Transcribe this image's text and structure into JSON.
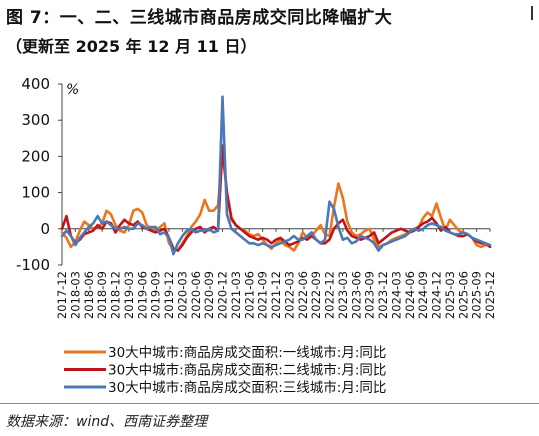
{
  "figure": {
    "title": "图 7：一、二、三线城市商品房成交同比降幅扩大",
    "subtitle": "（更新至 2025 年 12 月 11 日）",
    "source": "数据来源：wind、西南证券整理"
  },
  "chart_data": {
    "type": "line",
    "unit": "%",
    "ylim": [
      -100,
      400
    ],
    "yticks": [
      -100,
      0,
      100,
      200,
      300,
      400
    ],
    "x": [
      "2017-12",
      "2018-01",
      "2018-02",
      "2018-03",
      "2018-04",
      "2018-05",
      "2018-06",
      "2018-07",
      "2018-08",
      "2018-09",
      "2018-10",
      "2018-11",
      "2018-12",
      "2019-01",
      "2019-02",
      "2019-03",
      "2019-04",
      "2019-05",
      "2019-06",
      "2019-07",
      "2019-08",
      "2019-09",
      "2019-10",
      "2019-11",
      "2019-12",
      "2020-01",
      "2020-02",
      "2020-03",
      "2020-04",
      "2020-05",
      "2020-06",
      "2020-07",
      "2020-08",
      "2020-09",
      "2020-10",
      "2020-11",
      "2020-12",
      "2021-01",
      "2021-02",
      "2021-03",
      "2021-04",
      "2021-05",
      "2021-06",
      "2021-07",
      "2021-08",
      "2021-09",
      "2021-10",
      "2021-11",
      "2021-12",
      "2022-01",
      "2022-02",
      "2022-03",
      "2022-04",
      "2022-05",
      "2022-06",
      "2022-07",
      "2022-08",
      "2022-09",
      "2022-10",
      "2022-11",
      "2022-12",
      "2023-01",
      "2023-02",
      "2023-03",
      "2023-04",
      "2023-05",
      "2023-06",
      "2023-07",
      "2023-08",
      "2023-09",
      "2023-10",
      "2023-11",
      "2023-12",
      "2024-01",
      "2024-02",
      "2024-03",
      "2024-04",
      "2024-05",
      "2024-06",
      "2024-07",
      "2024-08",
      "2024-09",
      "2024-10",
      "2024-11",
      "2024-12",
      "2025-01",
      "2025-02",
      "2025-03",
      "2025-04",
      "2025-05",
      "2025-06",
      "2025-07",
      "2025-08",
      "2025-09",
      "2025-10",
      "2025-11",
      "2025-12"
    ],
    "xtick_labels": [
      "2017-12",
      "2018-03",
      "2018-06",
      "2018-09",
      "2018-12",
      "2019-03",
      "2019-06",
      "2019-09",
      "2019-12",
      "2020-03",
      "2020-06",
      "2020-09",
      "2020-12",
      "2021-03",
      "2021-06",
      "2021-09",
      "2021-12",
      "2022-03",
      "2022-06",
      "2022-09",
      "2022-12",
      "2023-03",
      "2023-06",
      "2023-09",
      "2023-12",
      "2024-03",
      "2024-06",
      "2024-09",
      "2024-12",
      "2025-03",
      "2025-06",
      "2025-09",
      "2025-12"
    ],
    "series": [
      {
        "name": "30大中城市:商品房成交面积:一线城市:月:同比",
        "color": "#e8771e",
        "values": [
          -10,
          -25,
          -50,
          -35,
          -5,
          20,
          10,
          0,
          5,
          15,
          50,
          40,
          10,
          -5,
          -10,
          10,
          50,
          55,
          45,
          10,
          0,
          -5,
          5,
          15,
          -40,
          -55,
          -60,
          -40,
          -20,
          5,
          20,
          40,
          80,
          50,
          50,
          65,
          210,
          100,
          25,
          10,
          0,
          -5,
          -15,
          -20,
          -15,
          -30,
          -45,
          -55,
          -40,
          -30,
          -45,
          -50,
          -60,
          -40,
          -10,
          -25,
          -20,
          -5,
          10,
          -15,
          -20,
          60,
          125,
          85,
          20,
          -10,
          -20,
          -15,
          -5,
          0,
          -30,
          -50,
          -45,
          -40,
          -30,
          -25,
          -20,
          -15,
          -10,
          0,
          5,
          30,
          45,
          35,
          70,
          30,
          -5,
          25,
          10,
          -5,
          -10,
          -15,
          -25,
          -45,
          -50,
          -45,
          -45
        ]
      },
      {
        "name": "30大中城市:商品房成交面积:二线城市:月:同比",
        "color": "#c0141c",
        "values": [
          0,
          35,
          -20,
          -40,
          -30,
          -15,
          -10,
          -5,
          10,
          0,
          20,
          15,
          -10,
          10,
          25,
          15,
          10,
          20,
          5,
          0,
          -5,
          -10,
          -5,
          0,
          -25,
          -55,
          -60,
          -45,
          -25,
          -10,
          0,
          5,
          -10,
          0,
          5,
          -5,
          230,
          100,
          30,
          10,
          0,
          -10,
          -20,
          -25,
          -30,
          -25,
          -30,
          -40,
          -30,
          -25,
          -35,
          -45,
          -40,
          -35,
          -25,
          -30,
          -20,
          -30,
          -40,
          -40,
          -30,
          0,
          15,
          25,
          -5,
          -20,
          -25,
          -30,
          -25,
          -20,
          -10,
          -40,
          -30,
          -20,
          -10,
          -5,
          0,
          -5,
          -10,
          -5,
          5,
          15,
          20,
          30,
          15,
          -5,
          5,
          -10,
          -15,
          -20,
          -20,
          -15,
          -25,
          -35,
          -40,
          -40,
          -50
        ]
      },
      {
        "name": "30大中城市:商品房成交面积:三线城市:月:同比",
        "color": "#4a78b8",
        "values": [
          -20,
          -5,
          -20,
          -45,
          -25,
          -10,
          5,
          15,
          35,
          15,
          20,
          10,
          0,
          0,
          5,
          0,
          0,
          15,
          10,
          0,
          5,
          5,
          -15,
          -10,
          -25,
          -70,
          -40,
          -20,
          -5,
          0,
          -10,
          -5,
          -5,
          0,
          -10,
          -5,
          365,
          40,
          0,
          -10,
          -20,
          -30,
          -40,
          -40,
          -45,
          -40,
          -45,
          -50,
          -45,
          -40,
          -35,
          -30,
          -20,
          -30,
          -30,
          -20,
          -10,
          -30,
          -40,
          -30,
          75,
          55,
          5,
          -30,
          -25,
          -40,
          -35,
          -20,
          -25,
          -30,
          -40,
          -60,
          -45,
          -40,
          -35,
          -30,
          -25,
          -20,
          -10,
          0,
          -5,
          0,
          10,
          15,
          10,
          5,
          -5,
          -10,
          -15,
          -15,
          -10,
          -15,
          -25,
          -30,
          -35,
          -40,
          -45
        ]
      }
    ]
  }
}
